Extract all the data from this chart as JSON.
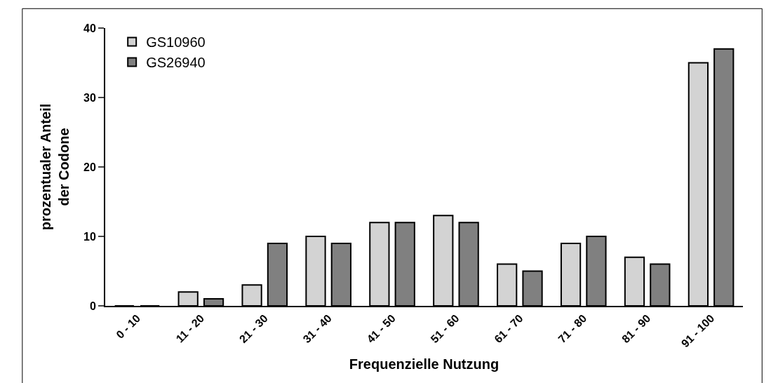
{
  "chart_data": {
    "type": "bar",
    "xlabel": "Frequenzielle Nutzung",
    "ylabel": "prozentualer Anteil\nder Codone",
    "categories": [
      "0 - 10",
      "11 - 20",
      "21 - 30",
      "31 - 40",
      "41 - 50",
      "51 - 60",
      "61 - 70",
      "71 - 80",
      "81 - 90",
      "91 - 100"
    ],
    "series": [
      {
        "name": "GS10960",
        "color": "#d3d3d3",
        "values": [
          0,
          2,
          3,
          10,
          12,
          13,
          6,
          9,
          7,
          35
        ]
      },
      {
        "name": "GS26940",
        "color": "#808080",
        "values": [
          0,
          1,
          9,
          9,
          12,
          12,
          5,
          10,
          6,
          37
        ]
      }
    ],
    "ylim": [
      0,
      40
    ],
    "yticks": [
      0,
      10,
      20,
      30,
      40
    ],
    "legend": "top left"
  }
}
